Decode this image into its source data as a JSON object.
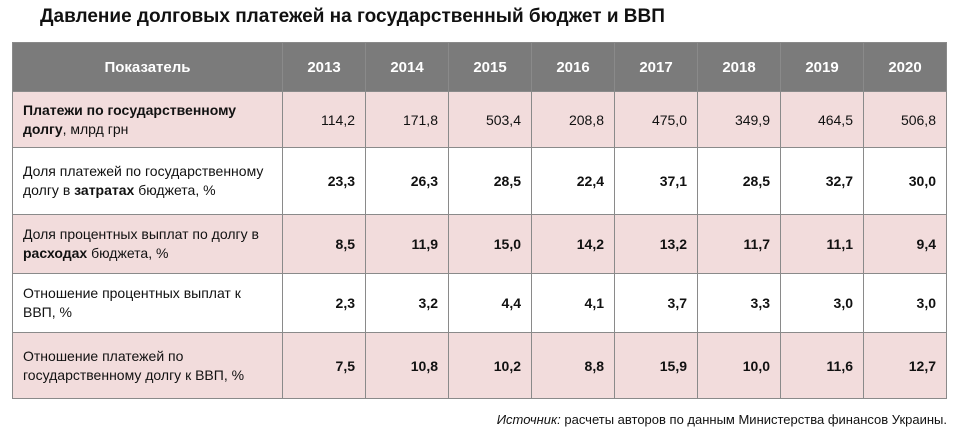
{
  "title": "Давление долговых платежей на государственный бюджет и ВВП",
  "table": {
    "header_label": "Показатель",
    "years": [
      "2013",
      "2014",
      "2015",
      "2016",
      "2017",
      "2018",
      "2019",
      "2020"
    ],
    "rows": [
      {
        "label_parts": [
          {
            "text": "Платежи по государственному долгу",
            "bold": true
          },
          {
            "text": ", млрд грн",
            "bold": false
          }
        ],
        "values": [
          "114,2",
          "171,8",
          "503,4",
          "208,8",
          "475,0",
          "349,9",
          "464,5",
          "506,8"
        ],
        "values_bold": false,
        "shade": "pink"
      },
      {
        "label_parts": [
          {
            "text": "Доля платежей по государственному долгу в ",
            "bold": false
          },
          {
            "text": "затратах",
            "bold": true
          },
          {
            "text": " бюджета, %",
            "bold": false
          }
        ],
        "values": [
          "23,3",
          "26,3",
          "28,5",
          "22,4",
          "37,1",
          "28,5",
          "32,7",
          "30,0"
        ],
        "values_bold": true,
        "shade": "white"
      },
      {
        "label_parts": [
          {
            "text": "Доля процентных выплат по долгу в ",
            "bold": false
          },
          {
            "text": "расходах",
            "bold": true
          },
          {
            "text": " бюджета, %",
            "bold": false
          }
        ],
        "values": [
          "8,5",
          "11,9",
          "15,0",
          "14,2",
          "13,2",
          "11,7",
          "11,1",
          "9,4"
        ],
        "values_bold": true,
        "shade": "pink"
      },
      {
        "label_parts": [
          {
            "text": "Отношение процентных выплат к ВВП, %",
            "bold": false
          }
        ],
        "values": [
          "2,3",
          "3,2",
          "4,4",
          "4,1",
          "3,7",
          "3,3",
          "3,0",
          "3,0"
        ],
        "values_bold": true,
        "shade": "white"
      },
      {
        "label_parts": [
          {
            "text": "Отношение платежей по государственному долгу к ВВП, %",
            "bold": false
          }
        ],
        "values": [
          "7,5",
          "10,8",
          "10,2",
          "8,8",
          "15,9",
          "10,0",
          "11,6",
          "12,7"
        ],
        "values_bold": true,
        "shade": "pink"
      }
    ]
  },
  "source": {
    "label": "Источник:",
    "text": " расчеты авторов по данным Министерства финансов Украины."
  },
  "colors": {
    "header_bg": "#7b7b7b",
    "pink_row": "#f2dcdc",
    "border": "#8a8a8a"
  }
}
